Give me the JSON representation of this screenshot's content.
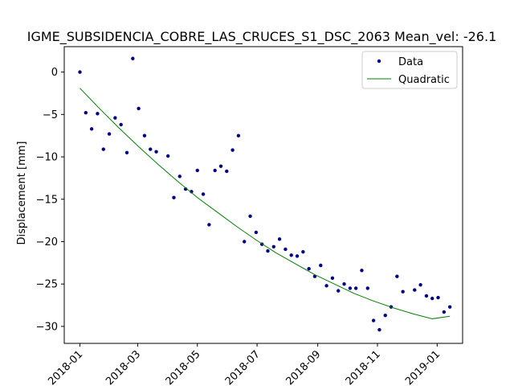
{
  "chart_data": {
    "type": "scatter",
    "title": "IGME_SUBSIDENCIA_COBRE_LAS_CRUCES_S1_DSC_2063     Mean_vel: -26.1",
    "xlabel": "",
    "ylabel": "Displacement [mm]",
    "x_type": "date",
    "xlim": [
      "2017-12-16",
      "2019-01-27"
    ],
    "ylim": [
      -32,
      3
    ],
    "x_ticks": [
      "2018-01",
      "2018-03",
      "2018-05",
      "2018-07",
      "2018-09",
      "2018-11",
      "2019-01"
    ],
    "y_ticks": [
      0,
      -5,
      -10,
      -15,
      -20,
      -25,
      -30
    ],
    "grid": false,
    "legend_position": "top-right",
    "series": [
      {
        "name": "Data",
        "kind": "points",
        "color": "#00008b",
        "points": [
          [
            "2018-01-01",
            0.0
          ],
          [
            "2018-01-07",
            -4.8
          ],
          [
            "2018-01-13",
            -6.7
          ],
          [
            "2018-01-19",
            -4.9
          ],
          [
            "2018-01-25",
            -9.1
          ],
          [
            "2018-01-31",
            -7.3
          ],
          [
            "2018-02-06",
            -5.4
          ],
          [
            "2018-02-12",
            -6.2
          ],
          [
            "2018-02-18",
            -9.5
          ],
          [
            "2018-02-24",
            1.6
          ],
          [
            "2018-03-02",
            -4.3
          ],
          [
            "2018-03-08",
            -7.5
          ],
          [
            "2018-03-14",
            -9.1
          ],
          [
            "2018-03-20",
            -9.4
          ],
          [
            "2018-04-01",
            -9.9
          ],
          [
            "2018-04-07",
            -14.8
          ],
          [
            "2018-04-13",
            -12.3
          ],
          [
            "2018-04-19",
            -13.8
          ],
          [
            "2018-04-25",
            -14.1
          ],
          [
            "2018-05-01",
            -11.6
          ],
          [
            "2018-05-07",
            -14.4
          ],
          [
            "2018-05-13",
            -18.0
          ],
          [
            "2018-05-19",
            -11.6
          ],
          [
            "2018-05-25",
            -11.1
          ],
          [
            "2018-05-31",
            -11.7
          ],
          [
            "2018-06-06",
            -9.2
          ],
          [
            "2018-06-12",
            -7.5
          ],
          [
            "2018-06-18",
            -20.0
          ],
          [
            "2018-06-24",
            -17.0
          ],
          [
            "2018-06-30",
            -18.9
          ],
          [
            "2018-07-06",
            -20.3
          ],
          [
            "2018-07-12",
            -21.1
          ],
          [
            "2018-07-18",
            -20.6
          ],
          [
            "2018-07-24",
            -19.7
          ],
          [
            "2018-07-30",
            -20.9
          ],
          [
            "2018-08-05",
            -21.6
          ],
          [
            "2018-08-11",
            -21.7
          ],
          [
            "2018-08-17",
            -21.2
          ],
          [
            "2018-08-23",
            -23.2
          ],
          [
            "2018-08-29",
            -24.1
          ],
          [
            "2018-09-04",
            -22.8
          ],
          [
            "2018-09-10",
            -25.2
          ],
          [
            "2018-09-16",
            -24.3
          ],
          [
            "2018-09-22",
            -25.8
          ],
          [
            "2018-09-28",
            -25.0
          ],
          [
            "2018-10-04",
            -25.5
          ],
          [
            "2018-10-10",
            -25.5
          ],
          [
            "2018-10-16",
            -23.4
          ],
          [
            "2018-10-22",
            -25.5
          ],
          [
            "2018-10-28",
            -29.3
          ],
          [
            "2018-11-03",
            -30.4
          ],
          [
            "2018-11-09",
            -28.7
          ],
          [
            "2018-11-15",
            -27.7
          ],
          [
            "2018-11-21",
            -24.1
          ],
          [
            "2018-11-27",
            -25.9
          ],
          [
            "2018-12-09",
            -25.7
          ],
          [
            "2018-12-15",
            -25.1
          ],
          [
            "2018-12-21",
            -26.4
          ],
          [
            "2018-12-27",
            -26.7
          ],
          [
            "2019-01-02",
            -26.6
          ],
          [
            "2019-01-08",
            -28.3
          ],
          [
            "2019-01-14",
            -27.7
          ]
        ]
      },
      {
        "name": "Quadratic",
        "kind": "line",
        "color": "#008000",
        "points": [
          [
            "2018-01-01",
            -1.9
          ],
          [
            "2018-01-21",
            -4.3
          ],
          [
            "2018-02-10",
            -6.6
          ],
          [
            "2018-03-02",
            -8.8
          ],
          [
            "2018-03-22",
            -10.9
          ],
          [
            "2018-04-11",
            -12.9
          ],
          [
            "2018-05-01",
            -14.8
          ],
          [
            "2018-05-21",
            -16.5
          ],
          [
            "2018-06-10",
            -18.2
          ],
          [
            "2018-06-30",
            -19.8
          ],
          [
            "2018-07-20",
            -21.3
          ],
          [
            "2018-08-09",
            -22.6
          ],
          [
            "2018-08-29",
            -23.9
          ],
          [
            "2018-09-18",
            -25.0
          ],
          [
            "2018-10-08",
            -26.1
          ],
          [
            "2018-10-28",
            -27.0
          ],
          [
            "2018-11-17",
            -27.8
          ],
          [
            "2018-12-07",
            -28.5
          ],
          [
            "2018-12-27",
            -29.1
          ],
          [
            "2019-01-14",
            -28.8
          ]
        ]
      }
    ]
  }
}
